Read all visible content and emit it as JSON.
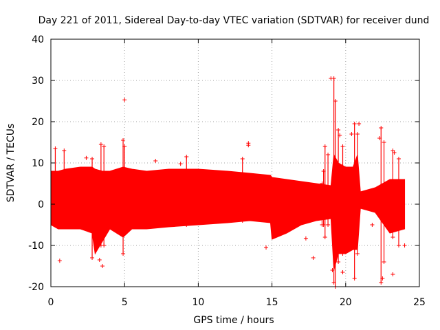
{
  "chart_data": {
    "type": "scatter",
    "title": "Day 221 of 2011, Sidereal Day-to-day VTEC variation (SDTVAR) for receiver dund",
    "xlabel": "GPS time / hours",
    "ylabel": "SDTVAR / TECUs",
    "xlim": [
      0,
      25
    ],
    "ylim": [
      -20,
      40
    ],
    "xticks": [
      0,
      5,
      10,
      15,
      20,
      25
    ],
    "yticks": [
      -20,
      -10,
      0,
      10,
      20,
      30,
      40
    ],
    "grid": true,
    "marker": "+",
    "series": [
      {
        "name": "SDTVAR",
        "color": "#ff0000",
        "envelope": {
          "x": [
            0.0,
            0.5,
            1.0,
            2.0,
            2.8,
            3.0,
            3.5,
            4.0,
            4.9,
            5.5,
            6.5,
            8.0,
            10.0,
            12.0,
            13.5,
            14.9,
            15.0,
            16.0,
            17.0,
            18.0,
            19.0,
            19.2,
            19.5,
            20.0,
            20.5,
            20.8,
            21.0,
            22.0,
            23.0,
            24.0
          ],
          "upper": [
            8.0,
            8.0,
            8.5,
            9.0,
            9.0,
            8.5,
            8.0,
            8.0,
            9.0,
            8.5,
            8.0,
            8.5,
            8.5,
            8.0,
            7.5,
            7.0,
            6.5,
            6.0,
            5.5,
            5.0,
            4.5,
            12.0,
            10.0,
            9.0,
            9.0,
            12.0,
            3.0,
            4.0,
            6.0,
            6.0
          ],
          "lower": [
            -5.0,
            -6.0,
            -6.0,
            -6.0,
            -7.0,
            -12.0,
            -9.0,
            -6.0,
            -8.0,
            -6.0,
            -6.0,
            -5.5,
            -5.0,
            -4.5,
            -4.0,
            -4.5,
            -8.5,
            -7.0,
            -5.0,
            -4.0,
            -3.5,
            -16.0,
            -12.0,
            -12.0,
            -11.0,
            -11.0,
            -1.0,
            -2.0,
            -7.0,
            -6.0
          ]
        },
        "spikes": [
          {
            "x": 0.3,
            "lo": 3,
            "hi": 13.5
          },
          {
            "x": 0.9,
            "lo": 3,
            "hi": 13
          },
          {
            "x": 2.8,
            "lo": -13,
            "hi": 11
          },
          {
            "x": 3.4,
            "lo": -10,
            "hi": 14.5
          },
          {
            "x": 3.6,
            "lo": -10,
            "hi": 14
          },
          {
            "x": 4.9,
            "lo": -12,
            "hi": 15.5
          },
          {
            "x": 5.0,
            "lo": -6,
            "hi": 14
          },
          {
            "x": 9.2,
            "lo": -5,
            "hi": 11.5
          },
          {
            "x": 13.0,
            "lo": -4,
            "hi": 11
          },
          {
            "x": 18.4,
            "lo": -5,
            "hi": 5
          },
          {
            "x": 18.5,
            "lo": -5,
            "hi": 8
          },
          {
            "x": 18.6,
            "lo": -8,
            "hi": 14
          },
          {
            "x": 18.8,
            "lo": -5,
            "hi": 12
          },
          {
            "x": 19.2,
            "lo": -19,
            "hi": 30.5
          },
          {
            "x": 19.3,
            "lo": -20,
            "hi": 25
          },
          {
            "x": 19.5,
            "lo": -14,
            "hi": 18
          },
          {
            "x": 19.8,
            "lo": -12,
            "hi": 14
          },
          {
            "x": 20.6,
            "lo": -18,
            "hi": 19.5
          },
          {
            "x": 20.8,
            "lo": -12,
            "hi": 17
          },
          {
            "x": 22.4,
            "lo": -19,
            "hi": 18.5
          },
          {
            "x": 22.6,
            "lo": -14,
            "hi": 15
          },
          {
            "x": 23.2,
            "lo": -8,
            "hi": 13
          },
          {
            "x": 23.6,
            "lo": -10,
            "hi": 11
          }
        ],
        "outliers": [
          [
            5.0,
            25.3
          ],
          [
            7.1,
            10.5
          ],
          [
            8.8,
            9.8
          ],
          [
            13.4,
            14.8
          ],
          [
            13.4,
            14.3
          ],
          [
            3.5,
            -15.0
          ],
          [
            0.6,
            -13.7
          ],
          [
            14.6,
            -10.5
          ],
          [
            17.3,
            -8.3
          ],
          [
            17.8,
            -13.0
          ],
          [
            19.0,
            30.5
          ],
          [
            19.6,
            16.7
          ],
          [
            19.8,
            -16.5
          ],
          [
            20.4,
            17.0
          ],
          [
            20.5,
            7.5
          ],
          [
            21.8,
            -5.0
          ],
          [
            22.5,
            -18.0
          ],
          [
            23.2,
            -17.0
          ],
          [
            24.0,
            -10.0
          ],
          [
            23.3,
            12.5
          ],
          [
            3.3,
            -13.5
          ],
          [
            2.4,
            11.2
          ],
          [
            19.1,
            -16.0
          ],
          [
            20.9,
            19.5
          ],
          [
            22.3,
            16.0
          ]
        ]
      }
    ]
  }
}
